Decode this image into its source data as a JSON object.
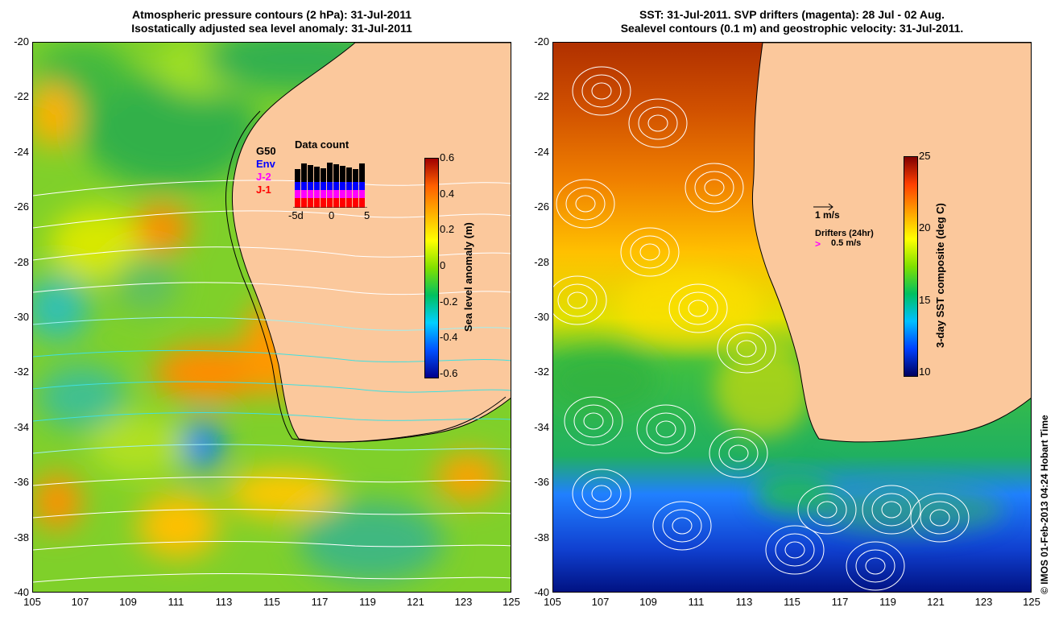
{
  "left_panel": {
    "title_line1": "Atmospheric pressure contours (2 hPa): 31-Jul-2011",
    "title_line2": "Isostatically adjusted sea level anomaly: 31-Jul-2011",
    "colorbar": {
      "label": "Sea level anomaly (m)",
      "ticks": [
        "0.6",
        "0.4",
        "0.2",
        "0",
        "-0.2",
        "-0.4",
        "-0.6"
      ]
    },
    "data_count": {
      "title": "Data count",
      "legend": [
        {
          "label": "G50",
          "color": "#000000"
        },
        {
          "label": "Env",
          "color": "#0000ff"
        },
        {
          "label": "J-2",
          "color": "#ff00ff"
        },
        {
          "label": "J-1",
          "color": "#ff0000"
        }
      ],
      "xticks": [
        "-5d",
        "0",
        "5"
      ]
    }
  },
  "right_panel": {
    "title_line1": "SST: 31-Jul-2011. SVP drifters (magenta): 28 Jul - 02 Aug.",
    "title_line2": "Sealevel contours (0.1 m) and geostrophic velocity: 31-Jul-2011.",
    "colorbar": {
      "label": "3-day SST composite (deg C)",
      "ticks": [
        "25",
        "20",
        "15",
        "10"
      ]
    },
    "velocity_scale": "1 m/s",
    "drifters_label": "Drifters (24hr)",
    "drifters_scale": "0.5 m/s"
  },
  "axes": {
    "y_ticks": [
      "-20",
      "-22",
      "-24",
      "-26",
      "-28",
      "-30",
      "-32",
      "-34",
      "-36",
      "-38",
      "-40"
    ],
    "x_ticks": [
      "105",
      "107",
      "109",
      "111",
      "113",
      "115",
      "117",
      "119",
      "121",
      "123",
      "125"
    ]
  },
  "credit": "© IMOS 01-Feb-2013 04:24 Hobart Time",
  "colors": {
    "land": "#fbc89c",
    "sla_ramp": [
      "#00008c",
      "#0050ff",
      "#00d0ff",
      "#00c060",
      "#80e000",
      "#ffff00",
      "#ff9000",
      "#a00000"
    ],
    "sst_ramp": [
      "#000060",
      "#0040ff",
      "#00c0ff",
      "#00c060",
      "#80e000",
      "#ffff00",
      "#ff9000",
      "#a00000"
    ]
  }
}
